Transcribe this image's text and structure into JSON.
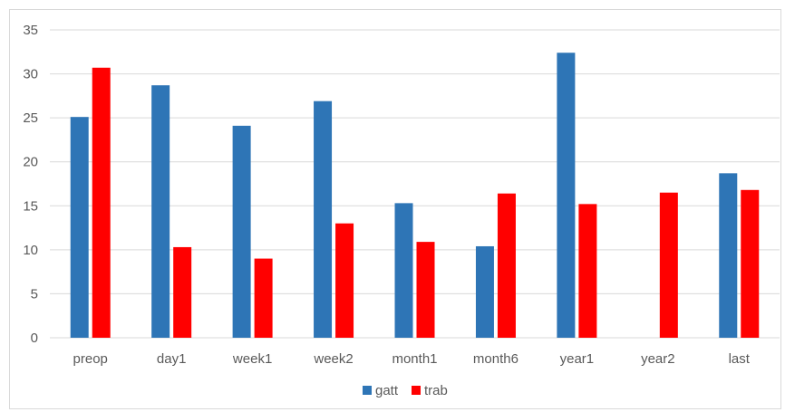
{
  "chart_data": {
    "type": "bar",
    "title": "",
    "xlabel": "",
    "ylabel": "",
    "categories": [
      "preop",
      "day1",
      "week1",
      "week2",
      "month1",
      "month6",
      "year1",
      "year2",
      "last"
    ],
    "series": [
      {
        "name": "gatt",
        "color": "#2E75B6",
        "values": [
          25.1,
          28.7,
          24.1,
          26.9,
          15.3,
          10.4,
          32.4,
          null,
          18.7
        ]
      },
      {
        "name": "trab",
        "color": "#FF0000",
        "values": [
          30.7,
          10.3,
          9.0,
          13.0,
          10.9,
          16.4,
          15.2,
          16.5,
          16.8
        ]
      }
    ],
    "ylim": [
      0,
      35
    ],
    "yticks": [
      "0",
      "5",
      "10",
      "15",
      "20",
      "25",
      "30",
      "35"
    ],
    "grid": true,
    "legend_position": "bottom"
  }
}
